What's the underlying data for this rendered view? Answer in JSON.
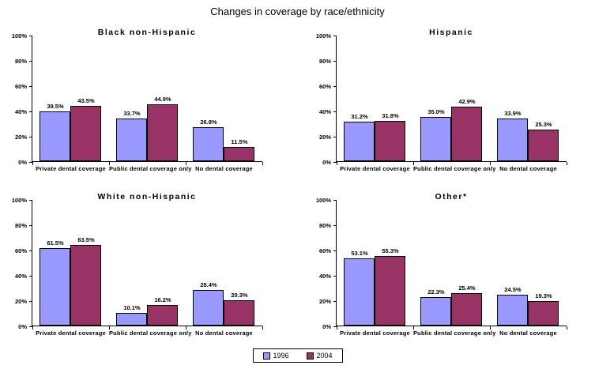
{
  "page_title": "Changes in coverage by race/ethnicity",
  "colors": {
    "bar_1996": "#9999FF",
    "bar_2004": "#993366",
    "bar_border": "#000000",
    "axis": "#000000"
  },
  "legend": {
    "items": [
      {
        "label": "1996",
        "color": "#9999FF"
      },
      {
        "label": "2004",
        "color": "#993366"
      }
    ]
  },
  "chart_data": [
    {
      "type": "bar",
      "title": "Black non-Hispanic",
      "categories": [
        "Private dental coverage",
        "Public dental coverage only",
        "No dental coverage"
      ],
      "series": [
        {
          "name": "1996",
          "values": [
            39.5,
            33.7,
            26.8
          ],
          "labels": [
            "39.5%",
            "33.7%",
            "26.8%"
          ]
        },
        {
          "name": "2004",
          "values": [
            43.5,
            44.9,
            11.5
          ],
          "labels": [
            "43.5%",
            "44.9%",
            "11.5%"
          ]
        }
      ],
      "ylim": [
        0,
        100
      ],
      "yticks": [
        "0%",
        "20%",
        "40%",
        "60%",
        "80%",
        "100%"
      ],
      "grid": false,
      "legend_position": "shared-bottom"
    },
    {
      "type": "bar",
      "title": "Hispanic",
      "categories": [
        "Private dental coverage",
        "Public dental coverage only",
        "No dental coverage"
      ],
      "series": [
        {
          "name": "1996",
          "values": [
            31.2,
            35.0,
            33.9
          ],
          "labels": [
            "31.2%",
            "35.0%",
            "33.9%"
          ]
        },
        {
          "name": "2004",
          "values": [
            31.8,
            42.9,
            25.3
          ],
          "labels": [
            "31.8%",
            "42.9%",
            "25.3%"
          ]
        }
      ],
      "ylim": [
        0,
        100
      ],
      "yticks": [
        "0%",
        "20%",
        "40%",
        "60%",
        "80%",
        "100%"
      ],
      "grid": false,
      "legend_position": "shared-bottom"
    },
    {
      "type": "bar",
      "title": "White non-Hispanic",
      "categories": [
        "Private dental coverage",
        "Public dental coverage only",
        "No dental coverage"
      ],
      "series": [
        {
          "name": "1996",
          "values": [
            61.5,
            10.1,
            28.4
          ],
          "labels": [
            "61.5%",
            "10.1%",
            "28.4%"
          ]
        },
        {
          "name": "2004",
          "values": [
            63.5,
            16.2,
            20.3
          ],
          "labels": [
            "63.5%",
            "16.2%",
            "20.3%"
          ]
        }
      ],
      "ylim": [
        0,
        100
      ],
      "yticks": [
        "0%",
        "20%",
        "40%",
        "60%",
        "80%",
        "100%"
      ],
      "grid": false,
      "legend_position": "shared-bottom"
    },
    {
      "type": "bar",
      "title": "Other*",
      "categories": [
        "Private dental coverage",
        "Public dental coverage only",
        "No dental coverage"
      ],
      "series": [
        {
          "name": "1996",
          "values": [
            53.1,
            22.3,
            24.5
          ],
          "labels": [
            "53.1%",
            "22.3%",
            "24.5%"
          ]
        },
        {
          "name": "2004",
          "values": [
            55.3,
            25.4,
            19.3
          ],
          "labels": [
            "55.3%",
            "25.4%",
            "19.3%"
          ]
        }
      ],
      "ylim": [
        0,
        100
      ],
      "yticks": [
        "0%",
        "20%",
        "40%",
        "60%",
        "80%",
        "100%"
      ],
      "grid": false,
      "legend_position": "shared-bottom"
    }
  ]
}
